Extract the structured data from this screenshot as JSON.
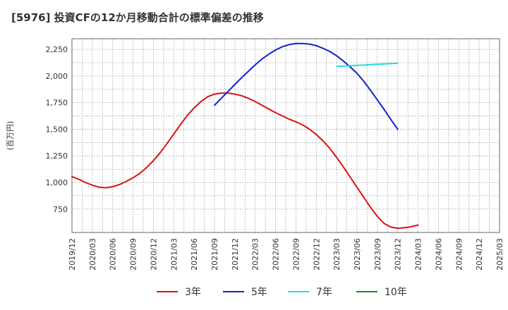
{
  "chart_data": {
    "type": "line",
    "title": "[5976]  投資CFの12か月移動合計の標準偏差の推移",
    "ylabel": "(百万円)",
    "xlabel": "",
    "ylim": [
      530,
      2350
    ],
    "yticks": [
      750,
      1000,
      1250,
      1500,
      1750,
      2000,
      2250
    ],
    "ytick_labels": [
      "750",
      "1,000",
      "1,250",
      "1,500",
      "1,750",
      "2,000",
      "2,250"
    ],
    "x_start": "2019/12",
    "x_end": "2025/03",
    "xtick_labels": [
      "2019/12",
      "2020/03",
      "2020/06",
      "2020/09",
      "2020/12",
      "2021/03",
      "2021/06",
      "2021/09",
      "2021/12",
      "2022/03",
      "2022/06",
      "2022/09",
      "2022/12",
      "2023/03",
      "2023/06",
      "2023/09",
      "2023/12",
      "2024/03",
      "2024/06",
      "2024/09",
      "2024/12",
      "2025/03"
    ],
    "grid": true,
    "legend_position": "bottom",
    "series": [
      {
        "name": "3年",
        "color": "#dd1111",
        "points": [
          [
            "2019/12",
            1055
          ],
          [
            "2020/01",
            1030
          ],
          [
            "2020/02",
            1000
          ],
          [
            "2020/03",
            975
          ],
          [
            "2020/04",
            955
          ],
          [
            "2020/05",
            950
          ],
          [
            "2020/06",
            960
          ],
          [
            "2020/07",
            980
          ],
          [
            "2020/08",
            1010
          ],
          [
            "2020/09",
            1045
          ],
          [
            "2020/10",
            1085
          ],
          [
            "2020/11",
            1140
          ],
          [
            "2020/12",
            1205
          ],
          [
            "2021/01",
            1280
          ],
          [
            "2021/02",
            1365
          ],
          [
            "2021/03",
            1455
          ],
          [
            "2021/04",
            1545
          ],
          [
            "2021/05",
            1630
          ],
          [
            "2021/06",
            1700
          ],
          [
            "2021/07",
            1760
          ],
          [
            "2021/08",
            1805
          ],
          [
            "2021/09",
            1830
          ],
          [
            "2021/10",
            1840
          ],
          [
            "2021/11",
            1840
          ],
          [
            "2021/12",
            1830
          ],
          [
            "2022/01",
            1815
          ],
          [
            "2022/02",
            1790
          ],
          [
            "2022/03",
            1760
          ],
          [
            "2022/04",
            1725
          ],
          [
            "2022/05",
            1690
          ],
          [
            "2022/06",
            1655
          ],
          [
            "2022/07",
            1625
          ],
          [
            "2022/08",
            1595
          ],
          [
            "2022/09",
            1570
          ],
          [
            "2022/10",
            1540
          ],
          [
            "2022/11",
            1500
          ],
          [
            "2022/12",
            1450
          ],
          [
            "2023/01",
            1390
          ],
          [
            "2023/02",
            1320
          ],
          [
            "2023/03",
            1235
          ],
          [
            "2023/04",
            1145
          ],
          [
            "2023/05",
            1050
          ],
          [
            "2023/06",
            955
          ],
          [
            "2023/07",
            860
          ],
          [
            "2023/08",
            765
          ],
          [
            "2023/09",
            680
          ],
          [
            "2023/10",
            615
          ],
          [
            "2023/11",
            580
          ],
          [
            "2023/12",
            570
          ],
          [
            "2024/01",
            575
          ],
          [
            "2024/02",
            585
          ],
          [
            "2024/03",
            600
          ]
        ]
      },
      {
        "name": "5年",
        "color": "#1122cc",
        "points": [
          [
            "2021/09",
            1725
          ],
          [
            "2021/10",
            1790
          ],
          [
            "2021/11",
            1855
          ],
          [
            "2021/12",
            1920
          ],
          [
            "2022/01",
            1985
          ],
          [
            "2022/02",
            2045
          ],
          [
            "2022/03",
            2105
          ],
          [
            "2022/04",
            2160
          ],
          [
            "2022/05",
            2205
          ],
          [
            "2022/06",
            2245
          ],
          [
            "2022/07",
            2275
          ],
          [
            "2022/08",
            2295
          ],
          [
            "2022/09",
            2305
          ],
          [
            "2022/10",
            2305
          ],
          [
            "2022/11",
            2300
          ],
          [
            "2022/12",
            2285
          ],
          [
            "2023/01",
            2260
          ],
          [
            "2023/02",
            2230
          ],
          [
            "2023/03",
            2190
          ],
          [
            "2023/04",
            2140
          ],
          [
            "2023/05",
            2085
          ],
          [
            "2023/06",
            2025
          ],
          [
            "2023/07",
            1950
          ],
          [
            "2023/08",
            1865
          ],
          [
            "2023/09",
            1775
          ],
          [
            "2023/10",
            1685
          ],
          [
            "2023/11",
            1590
          ],
          [
            "2023/12",
            1500
          ]
        ]
      },
      {
        "name": "7年",
        "color": "#22dddd",
        "points": [
          [
            "2023/03",
            2090
          ],
          [
            "2023/06",
            2100
          ],
          [
            "2023/09",
            2110
          ],
          [
            "2023/12",
            2120
          ]
        ]
      },
      {
        "name": "10年",
        "color": "#228822",
        "points": []
      }
    ]
  }
}
